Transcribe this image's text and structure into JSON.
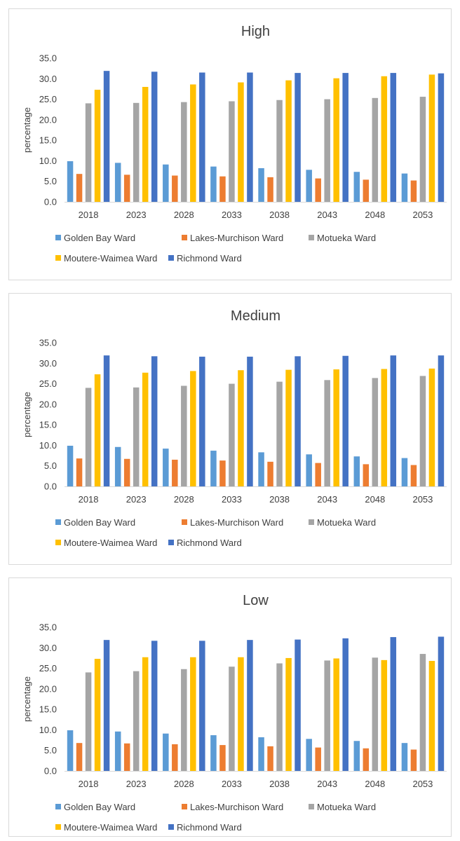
{
  "colors": {
    "Golden Bay Ward": "#5b9bd5",
    "Lakes-Murchison Ward": "#ed7d31",
    "Motueka Ward": "#a5a5a5",
    "Moutere-Waimea Ward": "#ffc000",
    "Richmond Ward": "#4472c4"
  },
  "chart_data": [
    {
      "type": "bar",
      "title": "High",
      "ylabel": "percentage",
      "ylim": [
        0,
        35
      ],
      "yticks": [
        "0.0",
        "5.0",
        "10.0",
        "15.0",
        "20.0",
        "25.0",
        "30.0",
        "35.0"
      ],
      "categories": [
        "2018",
        "2023",
        "2028",
        "2033",
        "2038",
        "2043",
        "2048",
        "2053"
      ],
      "legend_position": "bottom",
      "grid": false,
      "series": [
        {
          "name": "Golden Bay Ward",
          "values": [
            9.9,
            9.5,
            9.1,
            8.6,
            8.2,
            7.8,
            7.3,
            6.9
          ]
        },
        {
          "name": "Lakes-Murchison Ward",
          "values": [
            6.8,
            6.6,
            6.4,
            6.2,
            6.0,
            5.7,
            5.4,
            5.2
          ]
        },
        {
          "name": "Motueka Ward",
          "values": [
            24.0,
            24.1,
            24.3,
            24.5,
            24.8,
            25.0,
            25.3,
            25.6
          ]
        },
        {
          "name": "Moutere-Waimea Ward",
          "values": [
            27.3,
            28.0,
            28.6,
            29.1,
            29.6,
            30.1,
            30.6,
            31.0
          ]
        },
        {
          "name": "Richmond Ward",
          "values": [
            31.9,
            31.7,
            31.5,
            31.5,
            31.4,
            31.4,
            31.4,
            31.3
          ]
        }
      ]
    },
    {
      "type": "bar",
      "title": "Medium",
      "ylabel": "percentage",
      "ylim": [
        0,
        35
      ],
      "yticks": [
        "0.0",
        "5.0",
        "10.0",
        "15.0",
        "20.0",
        "25.0",
        "30.0",
        "35.0"
      ],
      "categories": [
        "2018",
        "2023",
        "2028",
        "2033",
        "2038",
        "2043",
        "2048",
        "2053"
      ],
      "legend_position": "bottom",
      "grid": false,
      "series": [
        {
          "name": "Golden Bay Ward",
          "values": [
            9.9,
            9.6,
            9.2,
            8.7,
            8.3,
            7.8,
            7.3,
            6.9
          ]
        },
        {
          "name": "Lakes-Murchison Ward",
          "values": [
            6.8,
            6.7,
            6.5,
            6.3,
            6.0,
            5.7,
            5.4,
            5.2
          ]
        },
        {
          "name": "Motueka Ward",
          "values": [
            24.0,
            24.1,
            24.5,
            25.0,
            25.5,
            25.9,
            26.4,
            26.9
          ]
        },
        {
          "name": "Moutere-Waimea Ward",
          "values": [
            27.3,
            27.7,
            28.1,
            28.3,
            28.4,
            28.5,
            28.6,
            28.7
          ]
        },
        {
          "name": "Richmond Ward",
          "values": [
            31.9,
            31.7,
            31.6,
            31.6,
            31.7,
            31.8,
            31.9,
            31.9
          ]
        }
      ]
    },
    {
      "type": "bar",
      "title": "Low",
      "ylabel": "percentage",
      "ylim": [
        0,
        35
      ],
      "yticks": [
        "0.0",
        "5.0",
        "10.0",
        "15.0",
        "20.0",
        "25.0",
        "30.0",
        "35.0"
      ],
      "categories": [
        "2018",
        "2023",
        "2028",
        "2033",
        "2038",
        "2043",
        "2048",
        "2053"
      ],
      "legend_position": "bottom",
      "grid": false,
      "series": [
        {
          "name": "Golden Bay Ward",
          "values": [
            9.9,
            9.6,
            9.1,
            8.7,
            8.2,
            7.8,
            7.3,
            6.8
          ]
        },
        {
          "name": "Lakes-Murchison Ward",
          "values": [
            6.8,
            6.7,
            6.5,
            6.3,
            6.0,
            5.7,
            5.5,
            5.2
          ]
        },
        {
          "name": "Motueka Ward",
          "values": [
            24.0,
            24.3,
            24.8,
            25.4,
            26.2,
            26.9,
            27.6,
            28.5
          ]
        },
        {
          "name": "Moutere-Waimea Ward",
          "values": [
            27.3,
            27.7,
            27.7,
            27.7,
            27.5,
            27.4,
            27.0,
            26.8
          ]
        },
        {
          "name": "Richmond Ward",
          "values": [
            31.9,
            31.7,
            31.7,
            31.9,
            32.0,
            32.3,
            32.6,
            32.7
          ]
        }
      ]
    }
  ]
}
